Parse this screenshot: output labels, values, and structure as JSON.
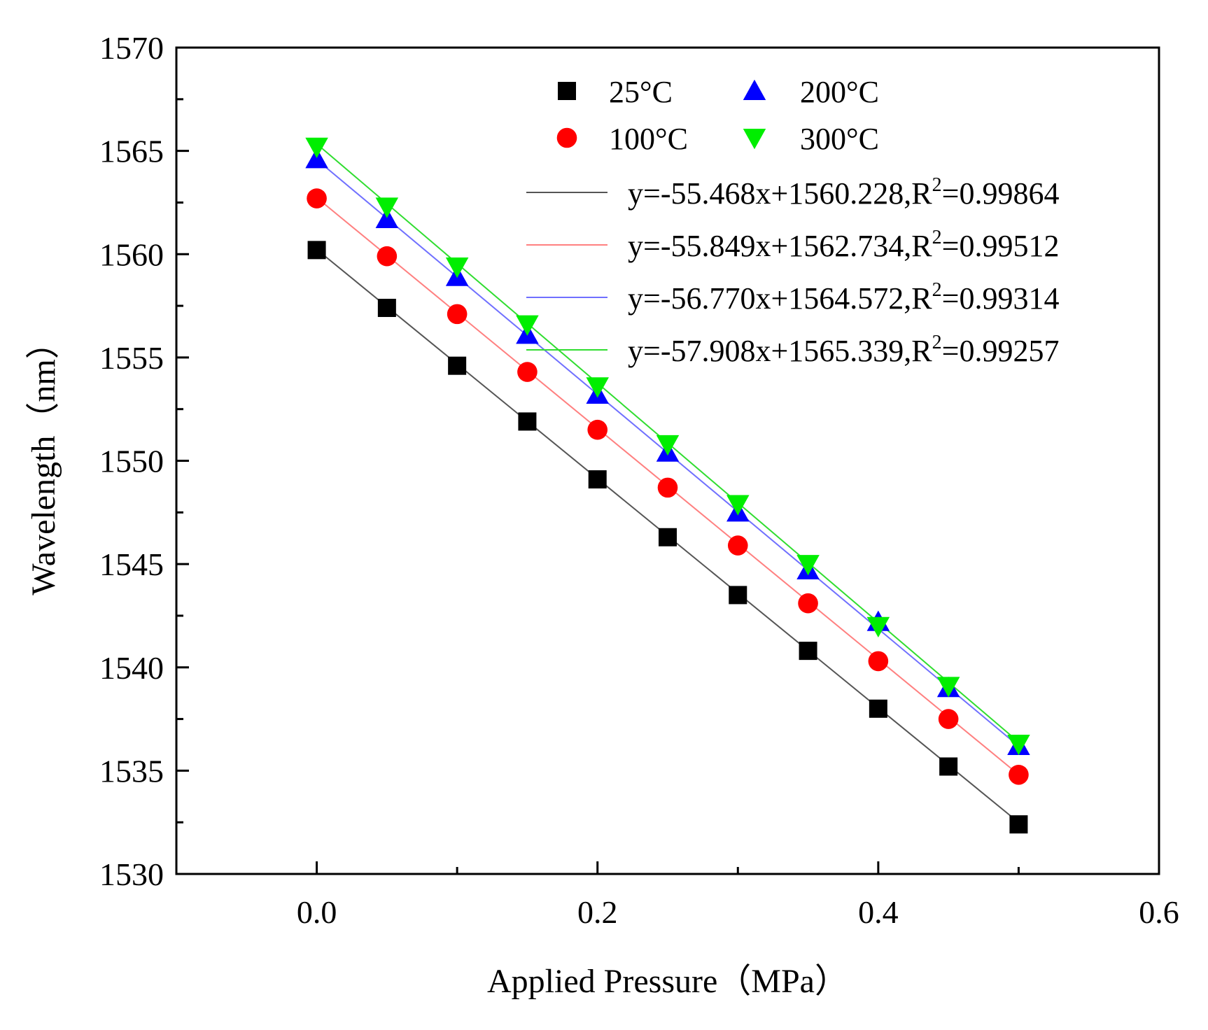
{
  "chart_data": {
    "type": "scatter",
    "xlabel": "Applied Pressure（MPa）",
    "ylabel": "Wavelength（nm）",
    "xlim": [
      -0.1,
      0.6
    ],
    "ylim": [
      1530,
      1570
    ],
    "xticks": [
      0.0,
      0.2,
      0.4,
      0.6
    ],
    "xtick_labels": [
      "0.0",
      "0.2",
      "0.4",
      "0.6"
    ],
    "yticks": [
      1530,
      1535,
      1540,
      1545,
      1550,
      1555,
      1560,
      1565,
      1570
    ],
    "ytick_labels": [
      "1530",
      "1535",
      "1540",
      "1545",
      "1550",
      "1555",
      "1560",
      "1565",
      "1570"
    ],
    "grid": false,
    "legend_position": "top-right",
    "x": [
      0.0,
      0.05,
      0.1,
      0.15,
      0.2,
      0.25,
      0.3,
      0.35,
      0.4,
      0.45,
      0.5
    ],
    "series": [
      {
        "name": "25°C",
        "marker": "square",
        "color": "#000000",
        "values": [
          1560.2,
          1557.4,
          1554.6,
          1551.9,
          1549.1,
          1546.3,
          1543.5,
          1540.8,
          1538.0,
          1535.2,
          1532.4
        ],
        "fit": {
          "label": "y=-55.468x+1560.228,R",
          "r2": "=0.99864",
          "slope": -55.468,
          "intercept": 1560.228,
          "color": "#555555"
        }
      },
      {
        "name": "100°C",
        "marker": "circle",
        "color": "#ff0000",
        "values": [
          1562.7,
          1559.9,
          1557.1,
          1554.3,
          1551.5,
          1548.7,
          1545.9,
          1543.1,
          1540.3,
          1537.5,
          1534.8
        ],
        "fit": {
          "label": "y=-55.849x+1562.734,R",
          "r2": "=0.99512",
          "slope": -55.849,
          "intercept": 1562.734,
          "color": "#ff8080"
        }
      },
      {
        "name": "200°C",
        "marker": "triangle-up",
        "color": "#0000ff",
        "values": [
          1564.6,
          1561.7,
          1558.9,
          1556.1,
          1553.2,
          1550.4,
          1547.5,
          1544.7,
          1542.2,
          1539.0,
          1536.2
        ],
        "fit": {
          "label": "y=-56.770x+1564.572,R",
          "r2": "=0.99314",
          "slope": -56.77,
          "intercept": 1564.572,
          "color": "#7070ff"
        }
      },
      {
        "name": "300°C",
        "marker": "triangle-down",
        "color": "#00ee00",
        "values": [
          1565.2,
          1562.3,
          1559.4,
          1556.6,
          1553.6,
          1550.8,
          1547.9,
          1545.0,
          1542.0,
          1539.1,
          1536.3
        ],
        "fit": {
          "label": "y=-57.908x+1565.339,R",
          "r2": "=0.99257",
          "slope": -57.908,
          "intercept": 1565.339,
          "color": "#30dd30"
        }
      }
    ],
    "r_squared_superscript": "2"
  }
}
